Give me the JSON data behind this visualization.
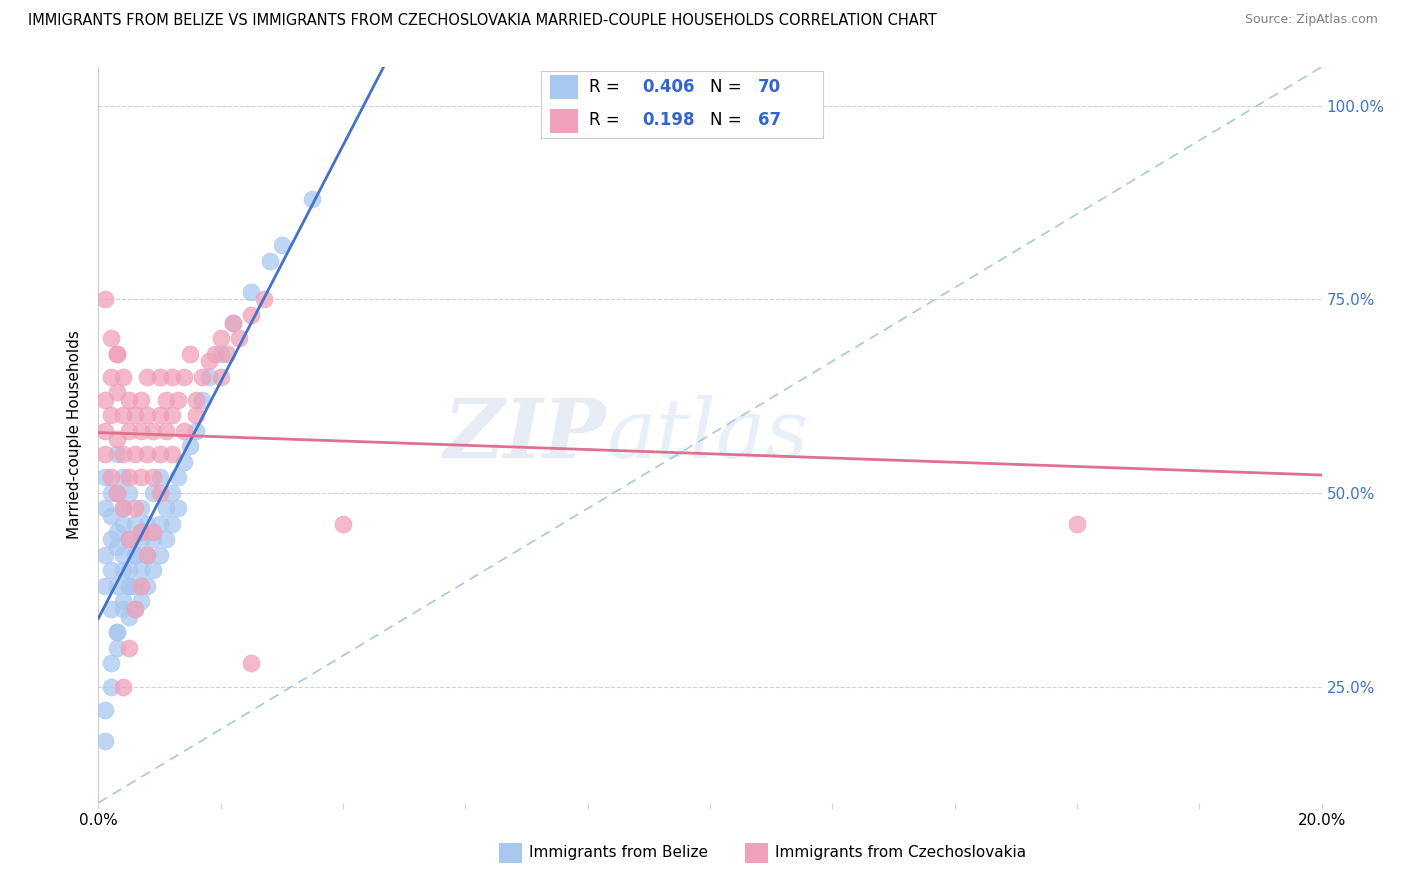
{
  "title": "IMMIGRANTS FROM BELIZE VS IMMIGRANTS FROM CZECHOSLOVAKIA MARRIED-COUPLE HOUSEHOLDS CORRELATION CHART",
  "source": "Source: ZipAtlas.com",
  "xlabel_belize": "Immigrants from Belize",
  "xlabel_czech": "Immigrants from Czechoslovakia",
  "ylabel": "Married-couple Households",
  "xmin": 0.0,
  "xmax": 0.2,
  "ymin": 0.1,
  "ymax": 1.05,
  "yticks": [
    0.25,
    0.5,
    0.75,
    1.0
  ],
  "ytick_labels": [
    "25.0%",
    "50.0%",
    "75.0%",
    "100.0%"
  ],
  "xticks": [
    0.0,
    0.02,
    0.04,
    0.06,
    0.08,
    0.1,
    0.12,
    0.14,
    0.16,
    0.18,
    0.2
  ],
  "xtick_labels": [
    "0.0%",
    "",
    "",
    "",
    "",
    "",
    "",
    "",
    "",
    "",
    "20.0%"
  ],
  "R_belize": 0.406,
  "N_belize": 70,
  "R_czech": 0.198,
  "N_czech": 67,
  "color_belize": "#A8C8F0",
  "color_czech": "#F0A0B8",
  "trendline_belize": "#4472C4",
  "trendline_czech": "#E07090",
  "trendline_ref_color": "#A0C0E0",
  "watermark": "ZIPatlas",
  "background_color": "#FFFFFF",
  "belize_x": [
    0.001,
    0.001,
    0.001,
    0.001,
    0.002,
    0.002,
    0.002,
    0.002,
    0.002,
    0.003,
    0.003,
    0.003,
    0.003,
    0.003,
    0.003,
    0.004,
    0.004,
    0.004,
    0.004,
    0.004,
    0.004,
    0.005,
    0.005,
    0.005,
    0.005,
    0.005,
    0.006,
    0.006,
    0.006,
    0.006,
    0.007,
    0.007,
    0.007,
    0.007,
    0.008,
    0.008,
    0.008,
    0.009,
    0.009,
    0.009,
    0.01,
    0.01,
    0.01,
    0.011,
    0.011,
    0.012,
    0.012,
    0.013,
    0.013,
    0.014,
    0.015,
    0.016,
    0.017,
    0.018,
    0.02,
    0.022,
    0.025,
    0.028,
    0.03,
    0.035,
    0.001,
    0.001,
    0.002,
    0.002,
    0.003,
    0.003,
    0.004,
    0.005,
    0.006,
    0.007
  ],
  "belize_y": [
    0.42,
    0.48,
    0.52,
    0.38,
    0.4,
    0.44,
    0.5,
    0.35,
    0.47,
    0.43,
    0.38,
    0.5,
    0.45,
    0.55,
    0.32,
    0.4,
    0.46,
    0.52,
    0.36,
    0.42,
    0.48,
    0.38,
    0.44,
    0.5,
    0.34,
    0.4,
    0.42,
    0.46,
    0.35,
    0.38,
    0.4,
    0.44,
    0.36,
    0.48,
    0.42,
    0.38,
    0.46,
    0.44,
    0.4,
    0.5,
    0.46,
    0.42,
    0.52,
    0.48,
    0.44,
    0.5,
    0.46,
    0.52,
    0.48,
    0.54,
    0.56,
    0.58,
    0.62,
    0.65,
    0.68,
    0.72,
    0.76,
    0.8,
    0.82,
    0.88,
    0.18,
    0.22,
    0.25,
    0.28,
    0.3,
    0.32,
    0.35,
    0.38,
    0.42,
    0.45
  ],
  "czech_x": [
    0.001,
    0.001,
    0.001,
    0.002,
    0.002,
    0.002,
    0.003,
    0.003,
    0.003,
    0.003,
    0.004,
    0.004,
    0.004,
    0.004,
    0.005,
    0.005,
    0.005,
    0.005,
    0.006,
    0.006,
    0.006,
    0.007,
    0.007,
    0.007,
    0.007,
    0.008,
    0.008,
    0.008,
    0.009,
    0.009,
    0.01,
    0.01,
    0.01,
    0.011,
    0.011,
    0.012,
    0.012,
    0.013,
    0.014,
    0.015,
    0.016,
    0.017,
    0.018,
    0.019,
    0.02,
    0.021,
    0.022,
    0.023,
    0.025,
    0.027,
    0.001,
    0.002,
    0.003,
    0.004,
    0.005,
    0.006,
    0.007,
    0.008,
    0.009,
    0.01,
    0.012,
    0.014,
    0.016,
    0.02,
    0.025,
    0.04,
    0.16
  ],
  "czech_y": [
    0.58,
    0.62,
    0.55,
    0.6,
    0.65,
    0.52,
    0.57,
    0.63,
    0.5,
    0.68,
    0.55,
    0.6,
    0.48,
    0.65,
    0.52,
    0.58,
    0.62,
    0.44,
    0.55,
    0.6,
    0.48,
    0.52,
    0.58,
    0.62,
    0.45,
    0.55,
    0.6,
    0.65,
    0.52,
    0.58,
    0.55,
    0.6,
    0.65,
    0.58,
    0.62,
    0.6,
    0.65,
    0.62,
    0.65,
    0.68,
    0.62,
    0.65,
    0.67,
    0.68,
    0.7,
    0.68,
    0.72,
    0.7,
    0.73,
    0.75,
    0.75,
    0.7,
    0.68,
    0.25,
    0.3,
    0.35,
    0.38,
    0.42,
    0.45,
    0.5,
    0.55,
    0.58,
    0.6,
    0.65,
    0.28,
    0.46,
    0.46
  ]
}
